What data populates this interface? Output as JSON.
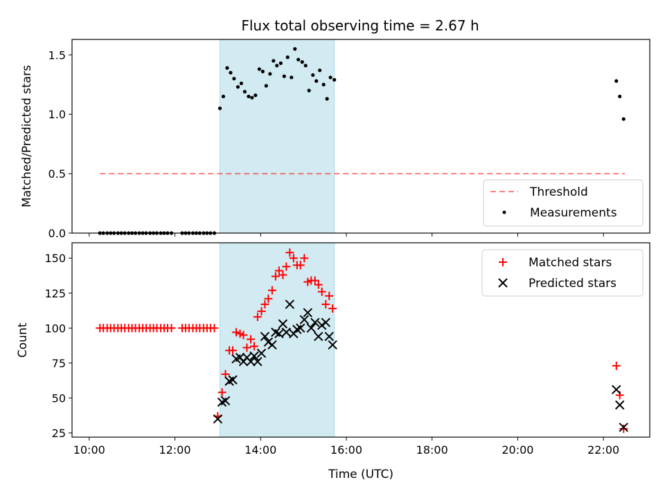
{
  "chart_data": [
    {
      "type": "scatter",
      "title": "Flux total observing time = 2.67 h",
      "xlabel": "",
      "ylabel": "Matched/Predicted stars",
      "ylim": [
        0,
        1.63
      ],
      "yticks": [
        0.0,
        0.5,
        1.0,
        1.5
      ],
      "ytick_labels": [
        "0.0",
        "0.5",
        "1.0",
        "1.5"
      ],
      "xlim_hours": [
        9.6,
        23.08
      ],
      "xticks_hours": [
        10,
        12,
        14,
        16,
        18,
        20,
        22
      ],
      "shaded_span_hours": [
        13.05,
        15.72
      ],
      "shade_color": "#add8e6",
      "threshold": {
        "name": "Threshold",
        "value": 0.5,
        "x_range_hours": [
          10.25,
          22.5
        ],
        "color": "#ff0000",
        "alpha": 0.5,
        "dash": true
      },
      "legend": {
        "position": "lower-right",
        "entries": [
          "Threshold",
          "Measurements"
        ]
      },
      "series": [
        {
          "name": "Measurements",
          "marker": "dot",
          "color": "#000000",
          "points": [
            [
              10.25,
              0
            ],
            [
              10.33,
              0
            ],
            [
              10.42,
              0
            ],
            [
              10.5,
              0
            ],
            [
              10.58,
              0
            ],
            [
              10.67,
              0
            ],
            [
              10.75,
              0
            ],
            [
              10.83,
              0
            ],
            [
              10.92,
              0
            ],
            [
              11.0,
              0
            ],
            [
              11.08,
              0
            ],
            [
              11.17,
              0
            ],
            [
              11.25,
              0
            ],
            [
              11.33,
              0
            ],
            [
              11.42,
              0
            ],
            [
              11.5,
              0
            ],
            [
              11.58,
              0
            ],
            [
              11.67,
              0
            ],
            [
              11.75,
              0
            ],
            [
              11.83,
              0
            ],
            [
              11.92,
              0
            ],
            [
              12.17,
              0
            ],
            [
              12.25,
              0
            ],
            [
              12.33,
              0
            ],
            [
              12.42,
              0
            ],
            [
              12.5,
              0
            ],
            [
              12.58,
              0
            ],
            [
              12.67,
              0
            ],
            [
              12.75,
              0
            ],
            [
              12.83,
              0
            ],
            [
              12.92,
              0
            ],
            [
              13.05,
              1.05
            ],
            [
              13.13,
              1.15
            ],
            [
              13.22,
              1.39
            ],
            [
              13.3,
              1.35
            ],
            [
              13.38,
              1.3
            ],
            [
              13.47,
              1.23
            ],
            [
              13.55,
              1.26
            ],
            [
              13.63,
              1.19
            ],
            [
              13.72,
              1.15
            ],
            [
              13.8,
              1.14
            ],
            [
              13.88,
              1.16
            ],
            [
              13.97,
              1.38
            ],
            [
              14.05,
              1.36
            ],
            [
              14.13,
              1.24
            ],
            [
              14.22,
              1.34
            ],
            [
              14.3,
              1.45
            ],
            [
              14.38,
              1.41
            ],
            [
              14.47,
              1.43
            ],
            [
              14.55,
              1.32
            ],
            [
              14.63,
              1.48
            ],
            [
              14.72,
              1.31
            ],
            [
              14.8,
              1.55
            ],
            [
              14.88,
              1.46
            ],
            [
              14.97,
              1.44
            ],
            [
              15.05,
              1.41
            ],
            [
              15.13,
              1.2
            ],
            [
              15.22,
              1.33
            ],
            [
              15.3,
              1.28
            ],
            [
              15.38,
              1.37
            ],
            [
              15.47,
              1.25
            ],
            [
              15.55,
              1.13
            ],
            [
              15.63,
              1.31
            ],
            [
              15.72,
              1.29
            ],
            [
              22.3,
              1.28
            ],
            [
              22.38,
              1.15
            ],
            [
              22.47,
              0.96
            ]
          ]
        }
      ]
    },
    {
      "type": "scatter",
      "title": "",
      "xlabel": "Time (UTC)",
      "ylabel": "Count",
      "ylim": [
        22,
        161
      ],
      "yticks": [
        25,
        50,
        75,
        100,
        125,
        150
      ],
      "ytick_labels": [
        "25",
        "50",
        "75",
        "100",
        "125",
        "150"
      ],
      "xlim_hours": [
        9.6,
        23.08
      ],
      "xticks_hours": [
        10,
        12,
        14,
        16,
        18,
        20,
        22
      ],
      "xtick_labels": [
        "10:00",
        "12:00",
        "14:00",
        "16:00",
        "18:00",
        "20:00",
        "22:00"
      ],
      "shaded_span_hours": [
        13.05,
        15.72
      ],
      "shade_color": "#add8e6",
      "legend": {
        "position": "upper-right",
        "entries": [
          "Matched stars",
          "Predicted stars"
        ]
      },
      "series": [
        {
          "name": "Matched stars",
          "marker": "plus",
          "color": "#ff0000",
          "points": [
            [
              10.25,
              100
            ],
            [
              10.33,
              100
            ],
            [
              10.42,
              100
            ],
            [
              10.5,
              100
            ],
            [
              10.58,
              100
            ],
            [
              10.67,
              100
            ],
            [
              10.75,
              100
            ],
            [
              10.83,
              100
            ],
            [
              10.92,
              100
            ],
            [
              11.0,
              100
            ],
            [
              11.08,
              100
            ],
            [
              11.17,
              100
            ],
            [
              11.25,
              100
            ],
            [
              11.33,
              100
            ],
            [
              11.42,
              100
            ],
            [
              11.5,
              100
            ],
            [
              11.58,
              100
            ],
            [
              11.67,
              100
            ],
            [
              11.75,
              100
            ],
            [
              11.83,
              100
            ],
            [
              11.92,
              100
            ],
            [
              12.17,
              100
            ],
            [
              12.25,
              100
            ],
            [
              12.33,
              100
            ],
            [
              12.42,
              100
            ],
            [
              12.5,
              100
            ],
            [
              12.58,
              100
            ],
            [
              12.67,
              100
            ],
            [
              12.75,
              100
            ],
            [
              12.83,
              100
            ],
            [
              12.92,
              100
            ],
            [
              13.0,
              37
            ],
            [
              13.1,
              54
            ],
            [
              13.18,
              67
            ],
            [
              13.27,
              84
            ],
            [
              13.35,
              84
            ],
            [
              13.43,
              97
            ],
            [
              13.52,
              96
            ],
            [
              13.6,
              95
            ],
            [
              13.68,
              86
            ],
            [
              13.77,
              92
            ],
            [
              13.85,
              87
            ],
            [
              13.93,
              108
            ],
            [
              14.02,
              112
            ],
            [
              14.1,
              117
            ],
            [
              14.18,
              121
            ],
            [
              14.27,
              127
            ],
            [
              14.35,
              137
            ],
            [
              14.43,
              141
            ],
            [
              14.52,
              138
            ],
            [
              14.6,
              144
            ],
            [
              14.68,
              154
            ],
            [
              14.77,
              150
            ],
            [
              14.85,
              145
            ],
            [
              14.93,
              145
            ],
            [
              15.02,
              150
            ],
            [
              15.1,
              133
            ],
            [
              15.18,
              134
            ],
            [
              15.27,
              134
            ],
            [
              15.35,
              131
            ],
            [
              15.43,
              126
            ],
            [
              15.52,
              117
            ],
            [
              15.6,
              123
            ],
            [
              15.68,
              114
            ],
            [
              22.3,
              73
            ],
            [
              22.38,
              52
            ],
            [
              22.47,
              28
            ]
          ]
        },
        {
          "name": "Predicted stars",
          "marker": "x",
          "color": "#000000",
          "points": [
            [
              13.0,
              35
            ],
            [
              13.1,
              47
            ],
            [
              13.18,
              48
            ],
            [
              13.27,
              62
            ],
            [
              13.35,
              63
            ],
            [
              13.43,
              78
            ],
            [
              13.52,
              79
            ],
            [
              13.6,
              76
            ],
            [
              13.68,
              79
            ],
            [
              13.77,
              76
            ],
            [
              13.85,
              80
            ],
            [
              13.93,
              76
            ],
            [
              14.02,
              82
            ],
            [
              14.1,
              94
            ],
            [
              14.18,
              90
            ],
            [
              14.27,
              88
            ],
            [
              14.35,
              97
            ],
            [
              14.43,
              96
            ],
            [
              14.52,
              103
            ],
            [
              14.6,
              97
            ],
            [
              14.68,
              117
            ],
            [
              14.77,
              96
            ],
            [
              14.85,
              99
            ],
            [
              14.93,
              100
            ],
            [
              15.02,
              106
            ],
            [
              15.1,
              111
            ],
            [
              15.18,
              100
            ],
            [
              15.27,
              104
            ],
            [
              15.35,
              94
            ],
            [
              15.43,
              102
            ],
            [
              15.52,
              104
            ],
            [
              15.6,
              94
            ],
            [
              15.68,
              88
            ],
            [
              22.3,
              56
            ],
            [
              22.38,
              45
            ],
            [
              22.47,
              29
            ]
          ]
        }
      ]
    }
  ]
}
